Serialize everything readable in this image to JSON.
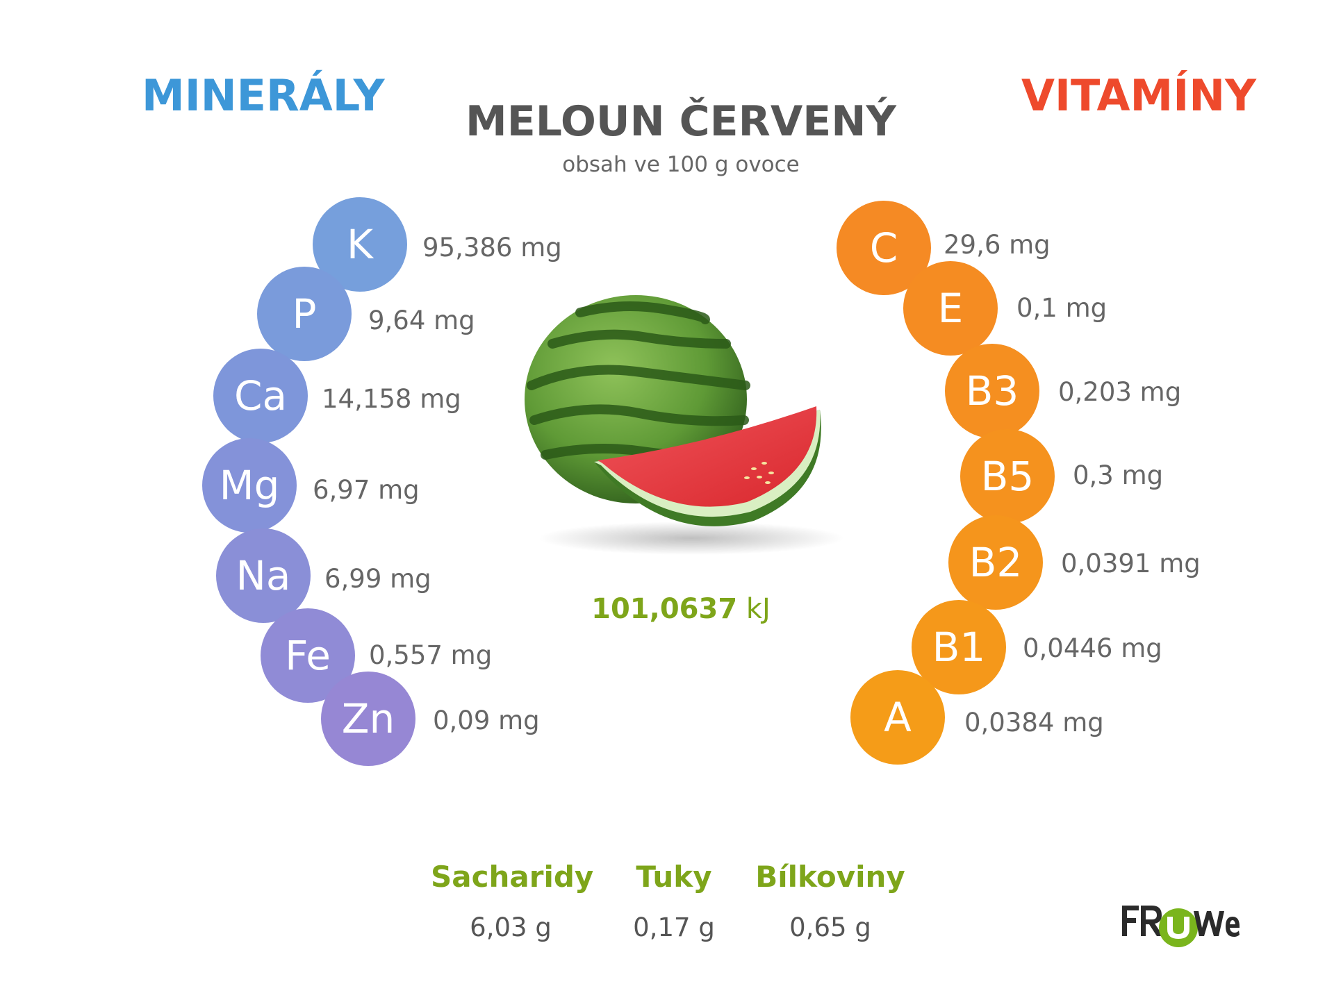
{
  "minerals": {
    "heading": "MINERÁLY",
    "heading_color": "#3d97d8",
    "items": [
      {
        "symbol": "K",
        "value": "95,386 mg",
        "color": "#769fdc"
      },
      {
        "symbol": "P",
        "value": "9,64 mg",
        "color": "#7a9bdb"
      },
      {
        "symbol": "Ca",
        "value": "14,158 mg",
        "color": "#7e96da"
      },
      {
        "symbol": "Mg",
        "value": "6,97 mg",
        "color": "#8492d9"
      },
      {
        "symbol": "Na",
        "value": "6,99 mg",
        "color": "#8a8fd7"
      },
      {
        "symbol": "Fe",
        "value": "0,557 mg",
        "color": "#908bd6"
      },
      {
        "symbol": "Zn",
        "value": "0,09 mg",
        "color": "#9687d4"
      }
    ]
  },
  "vitamins": {
    "heading": "VITAMÍNY",
    "heading_color": "#ee4a2c",
    "items": [
      {
        "symbol": "C",
        "value": "29,6 mg",
        "color": "#f58a24"
      },
      {
        "symbol": "E",
        "value": "0,1 mg",
        "color": "#f58c22"
      },
      {
        "symbol": "B3",
        "value": "0,203 mg",
        "color": "#f58f20"
      },
      {
        "symbol": "B5",
        "value": "0,3 mg",
        "color": "#f5921e"
      },
      {
        "symbol": "B2",
        "value": "0,0391 mg",
        "color": "#f5951c"
      },
      {
        "symbol": "B1",
        "value": "0,0446 mg",
        "color": "#f5981a"
      },
      {
        "symbol": "A",
        "value": "0,0384 mg",
        "color": "#f59c18"
      }
    ]
  },
  "title": "MELOUN ČERVENÝ",
  "subtitle": "obsah ve 100 g ovoce",
  "energy": {
    "value": "101,0637",
    "unit": "kJ",
    "color": "#7ea51a"
  },
  "macros": {
    "label_color": "#7ea51a",
    "items": [
      {
        "label": "Sacharidy",
        "value": "6,03 g"
      },
      {
        "label": "Tuky",
        "value": "0,17 g"
      },
      {
        "label": "Bílkoviny",
        "value": "0,65 g"
      }
    ]
  },
  "image": {
    "name": "watermelon-image"
  },
  "logo": {
    "text": "FRUWE",
    "name": "fruwe-logo"
  }
}
